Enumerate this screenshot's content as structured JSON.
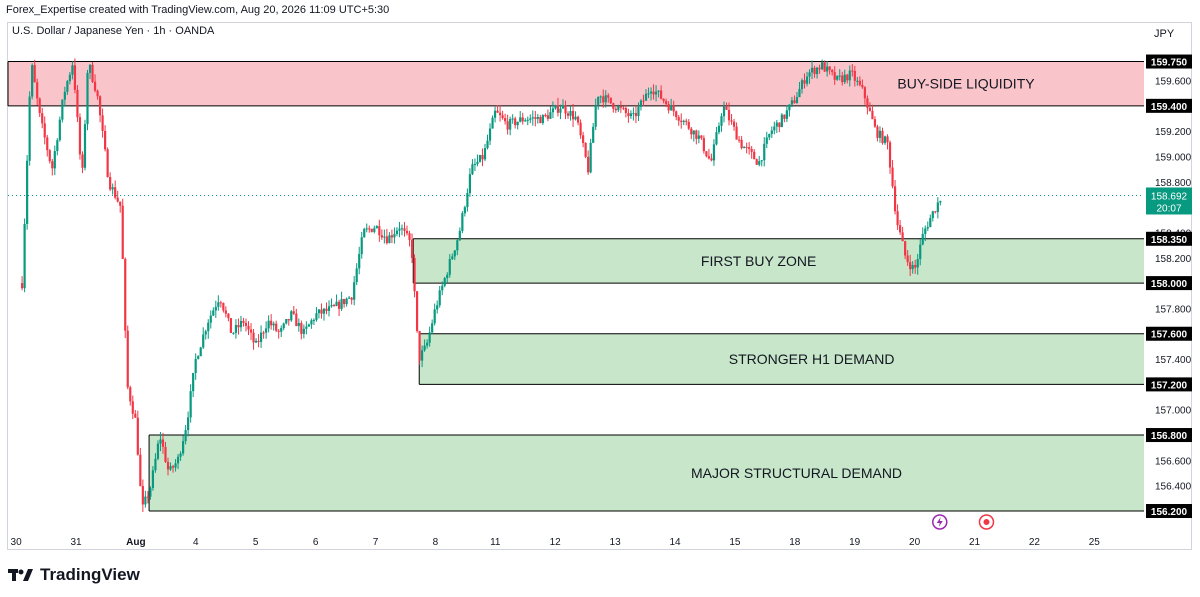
{
  "header": {
    "credit": "Forex_Expertise created with TradingView.com, Aug 20, 2026 11:09 UTC+5:30",
    "symbol": "U.S. Dollar / Japanese Yen · 1h · OANDA",
    "currency": "JPY"
  },
  "brand": {
    "name": "TradingView",
    "logo_icon": "tradingview-logo-icon"
  },
  "colors": {
    "up": "#089981",
    "down": "#f23645",
    "liquidity_fill": "#f9c5ca",
    "demand_fill": "#c8e6c9",
    "zone_line": "#000000",
    "last_price_bg": "#089981",
    "axis_text": "#131722",
    "accent_purple": "#9c27b0",
    "accent_red": "#f23645"
  },
  "chart_data": {
    "type": "candlestick",
    "title": "",
    "symbol": "USD/JPY",
    "timeframe": "1h",
    "xlabel": "",
    "ylabel": "",
    "ylim": [
      156.05,
      159.92
    ],
    "x_ticks": [
      {
        "label": "30",
        "day": -1
      },
      {
        "label": "31",
        "day": 0
      },
      {
        "label": "Aug",
        "day": 1
      },
      {
        "label": "4",
        "day": 2
      },
      {
        "label": "5",
        "day": 3
      },
      {
        "label": "6",
        "day": 4
      },
      {
        "label": "7",
        "day": 5
      },
      {
        "label": "8",
        "day": 6
      },
      {
        "label": "11",
        "day": 7
      },
      {
        "label": "12",
        "day": 8
      },
      {
        "label": "13",
        "day": 9
      },
      {
        "label": "14",
        "day": 10
      },
      {
        "label": "15",
        "day": 11
      },
      {
        "label": "18",
        "day": 12
      },
      {
        "label": "19",
        "day": 13
      },
      {
        "label": "20",
        "day": 14
      },
      {
        "label": "21",
        "day": 15
      },
      {
        "label": "22",
        "day": 16
      },
      {
        "label": "25",
        "day": 17
      }
    ],
    "y_ticks": [
      159.6,
      159.2,
      159.0,
      158.8,
      158.4,
      158.2,
      157.8,
      157.4,
      157.0,
      156.6,
      156.4
    ],
    "zones": [
      {
        "label": "BUY-SIDE LIQUIDITY",
        "top": 159.75,
        "bottom": 159.4,
        "kind": "liquidity",
        "start_day": -1.7
      },
      {
        "label": "FIRST BUY ZONE",
        "top": 158.35,
        "bottom": 158.0,
        "kind": "demand",
        "start_day": 5.63
      },
      {
        "label": "STRONGER H1 DEMAND",
        "top": 157.6,
        "bottom": 157.2,
        "kind": "demand",
        "start_day": 5.73
      },
      {
        "label": "MAJOR STRUCTURAL DEMAND",
        "top": 156.8,
        "bottom": 156.2,
        "kind": "demand",
        "start_day": 1.22
      }
    ],
    "price_labels": [
      {
        "text": "159.750",
        "value": 159.75
      },
      {
        "text": "159.400",
        "value": 159.4
      },
      {
        "text": "158.350",
        "value": 158.35
      },
      {
        "text": "158.000",
        "value": 158.0
      },
      {
        "text": "157.600",
        "value": 157.6
      },
      {
        "text": "157.200",
        "value": 157.2
      },
      {
        "text": "156.800",
        "value": 156.8
      },
      {
        "text": "156.200",
        "value": 156.2
      }
    ],
    "last_price": {
      "text": "158.692",
      "value": 158.692,
      "countdown": "20:07"
    },
    "price_path": [
      [
        -0.9,
        158.0
      ],
      [
        -0.75,
        159.75
      ],
      [
        -0.6,
        159.3
      ],
      [
        -0.4,
        158.9
      ],
      [
        -0.2,
        159.5
      ],
      [
        -0.05,
        159.75
      ],
      [
        0.1,
        158.8
      ],
      [
        0.2,
        159.75
      ],
      [
        0.35,
        159.5
      ],
      [
        0.55,
        158.8
      ],
      [
        0.75,
        158.6
      ],
      [
        0.85,
        157.2
      ],
      [
        1.0,
        156.9
      ],
      [
        1.1,
        156.2
      ],
      [
        1.25,
        156.4
      ],
      [
        1.4,
        156.8
      ],
      [
        1.55,
        156.5
      ],
      [
        1.7,
        156.6
      ],
      [
        1.85,
        156.9
      ],
      [
        2.0,
        157.4
      ],
      [
        2.2,
        157.7
      ],
      [
        2.4,
        157.9
      ],
      [
        2.6,
        157.6
      ],
      [
        2.8,
        157.7
      ],
      [
        3.0,
        157.5
      ],
      [
        3.2,
        157.7
      ],
      [
        3.4,
        157.6
      ],
      [
        3.6,
        157.75
      ],
      [
        3.8,
        157.6
      ],
      [
        4.0,
        157.75
      ],
      [
        4.3,
        157.8
      ],
      [
        4.6,
        157.9
      ],
      [
        4.8,
        158.4
      ],
      [
        5.0,
        158.45
      ],
      [
        5.2,
        158.35
      ],
      [
        5.4,
        158.45
      ],
      [
        5.6,
        158.3
      ],
      [
        5.72,
        157.4
      ],
      [
        5.85,
        157.5
      ],
      [
        6.0,
        157.8
      ],
      [
        6.2,
        158.1
      ],
      [
        6.4,
        158.4
      ],
      [
        6.6,
        158.9
      ],
      [
        6.8,
        159.0
      ],
      [
        7.0,
        159.35
      ],
      [
        7.2,
        159.25
      ],
      [
        7.5,
        159.3
      ],
      [
        7.8,
        159.3
      ],
      [
        8.1,
        159.4
      ],
      [
        8.35,
        159.3
      ],
      [
        8.55,
        158.9
      ],
      [
        8.7,
        159.5
      ],
      [
        9.0,
        159.4
      ],
      [
        9.3,
        159.3
      ],
      [
        9.6,
        159.55
      ],
      [
        9.9,
        159.4
      ],
      [
        10.1,
        159.3
      ],
      [
        10.4,
        159.15
      ],
      [
        10.6,
        158.95
      ],
      [
        10.8,
        159.4
      ],
      [
        11.1,
        159.1
      ],
      [
        11.4,
        158.95
      ],
      [
        11.6,
        159.2
      ],
      [
        11.8,
        159.3
      ],
      [
        12.0,
        159.45
      ],
      [
        12.2,
        159.65
      ],
      [
        12.45,
        159.72
      ],
      [
        12.7,
        159.6
      ],
      [
        12.95,
        159.65
      ],
      [
        13.15,
        159.5
      ],
      [
        13.35,
        159.2
      ],
      [
        13.55,
        159.1
      ],
      [
        13.7,
        158.5
      ],
      [
        13.85,
        158.2
      ],
      [
        14.0,
        158.1
      ],
      [
        14.15,
        158.4
      ],
      [
        14.3,
        158.55
      ],
      [
        14.45,
        158.69
      ]
    ]
  },
  "markers": [
    {
      "name": "lightning-event-icon",
      "glyph": "⚡",
      "day": 14.42
    },
    {
      "name": "record-event-icon",
      "glyph": "●",
      "day": 15.2
    }
  ]
}
